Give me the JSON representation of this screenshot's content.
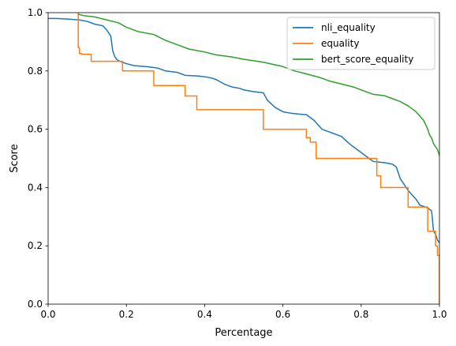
{
  "chart_data": {
    "type": "line",
    "title": "",
    "xlabel": "Percentage",
    "ylabel": "Score",
    "xlim": [
      0,
      1
    ],
    "ylim": [
      0,
      1
    ],
    "xticks": [
      "0.0",
      "0.2",
      "0.4",
      "0.6",
      "0.8",
      "1.0"
    ],
    "yticks": [
      "0.0",
      "0.2",
      "0.4",
      "0.6",
      "0.8",
      "1.0"
    ],
    "grid": false,
    "legend_position": "top-right",
    "series": [
      {
        "name": "nli_equality",
        "color": "#1f77b4",
        "x": [
          0.0,
          0.02,
          0.05,
          0.08,
          0.1,
          0.12,
          0.14,
          0.15,
          0.16,
          0.165,
          0.17,
          0.175,
          0.18,
          0.2,
          0.22,
          0.25,
          0.28,
          0.3,
          0.33,
          0.35,
          0.38,
          0.4,
          0.42,
          0.43,
          0.45,
          0.47,
          0.49,
          0.5,
          0.52,
          0.55,
          0.56,
          0.58,
          0.6,
          0.62,
          0.64,
          0.66,
          0.68,
          0.7,
          0.72,
          0.73,
          0.75,
          0.77,
          0.78,
          0.8,
          0.82,
          0.83,
          0.84,
          0.86,
          0.88,
          0.89,
          0.9,
          0.91,
          0.92,
          0.93,
          0.94,
          0.95,
          0.96,
          0.97,
          0.98,
          0.985,
          0.99,
          0.995,
          1.0
        ],
        "y": [
          0.98,
          0.98,
          0.978,
          0.975,
          0.97,
          0.96,
          0.955,
          0.94,
          0.92,
          0.87,
          0.85,
          0.84,
          0.835,
          0.825,
          0.818,
          0.815,
          0.81,
          0.8,
          0.795,
          0.785,
          0.783,
          0.78,
          0.775,
          0.77,
          0.755,
          0.745,
          0.74,
          0.735,
          0.73,
          0.725,
          0.7,
          0.675,
          0.66,
          0.655,
          0.652,
          0.65,
          0.63,
          0.6,
          0.59,
          0.585,
          0.575,
          0.55,
          0.54,
          0.52,
          0.5,
          0.49,
          0.488,
          0.485,
          0.48,
          0.47,
          0.43,
          0.41,
          0.39,
          0.375,
          0.36,
          0.34,
          0.335,
          0.33,
          0.32,
          0.25,
          0.24,
          0.22,
          0.21
        ]
      },
      {
        "name": "equality",
        "color": "#ff7f0e",
        "x": [
          0.077,
          0.077,
          0.08,
          0.08,
          0.085,
          0.085,
          0.11,
          0.11,
          0.19,
          0.19,
          0.27,
          0.27,
          0.35,
          0.35,
          0.38,
          0.38,
          0.55,
          0.55,
          0.66,
          0.66,
          0.67,
          0.67,
          0.685,
          0.685,
          0.84,
          0.84,
          0.85,
          0.85,
          0.92,
          0.92,
          0.97,
          0.97,
          0.99,
          0.99,
          0.995,
          0.995,
          1.0,
          1.0
        ],
        "y": [
          1.0,
          0.88,
          0.88,
          0.86,
          0.86,
          0.857,
          0.857,
          0.833,
          0.833,
          0.8,
          0.8,
          0.75,
          0.75,
          0.714,
          0.714,
          0.667,
          0.667,
          0.6,
          0.6,
          0.571,
          0.571,
          0.556,
          0.556,
          0.5,
          0.5,
          0.44,
          0.44,
          0.4,
          0.4,
          0.333,
          0.333,
          0.25,
          0.25,
          0.2,
          0.2,
          0.167,
          0.167,
          0.0
        ]
      },
      {
        "name": "bert_score_equality",
        "color": "#2ca02c",
        "x": [
          0.077,
          0.09,
          0.12,
          0.15,
          0.18,
          0.2,
          0.23,
          0.27,
          0.3,
          0.33,
          0.36,
          0.4,
          0.43,
          0.47,
          0.5,
          0.55,
          0.6,
          0.63,
          0.66,
          0.7,
          0.72,
          0.75,
          0.78,
          0.8,
          0.83,
          0.86,
          0.88,
          0.9,
          0.92,
          0.94,
          0.95,
          0.96,
          0.97,
          0.975,
          0.98,
          0.985,
          0.99,
          0.995,
          1.0
        ],
        "y": [
          0.995,
          0.99,
          0.985,
          0.975,
          0.965,
          0.95,
          0.935,
          0.925,
          0.905,
          0.89,
          0.875,
          0.865,
          0.855,
          0.848,
          0.84,
          0.83,
          0.815,
          0.8,
          0.79,
          0.775,
          0.765,
          0.755,
          0.745,
          0.735,
          0.72,
          0.715,
          0.705,
          0.695,
          0.68,
          0.66,
          0.645,
          0.63,
          0.6,
          0.58,
          0.57,
          0.55,
          0.54,
          0.53,
          0.51
        ]
      }
    ]
  }
}
